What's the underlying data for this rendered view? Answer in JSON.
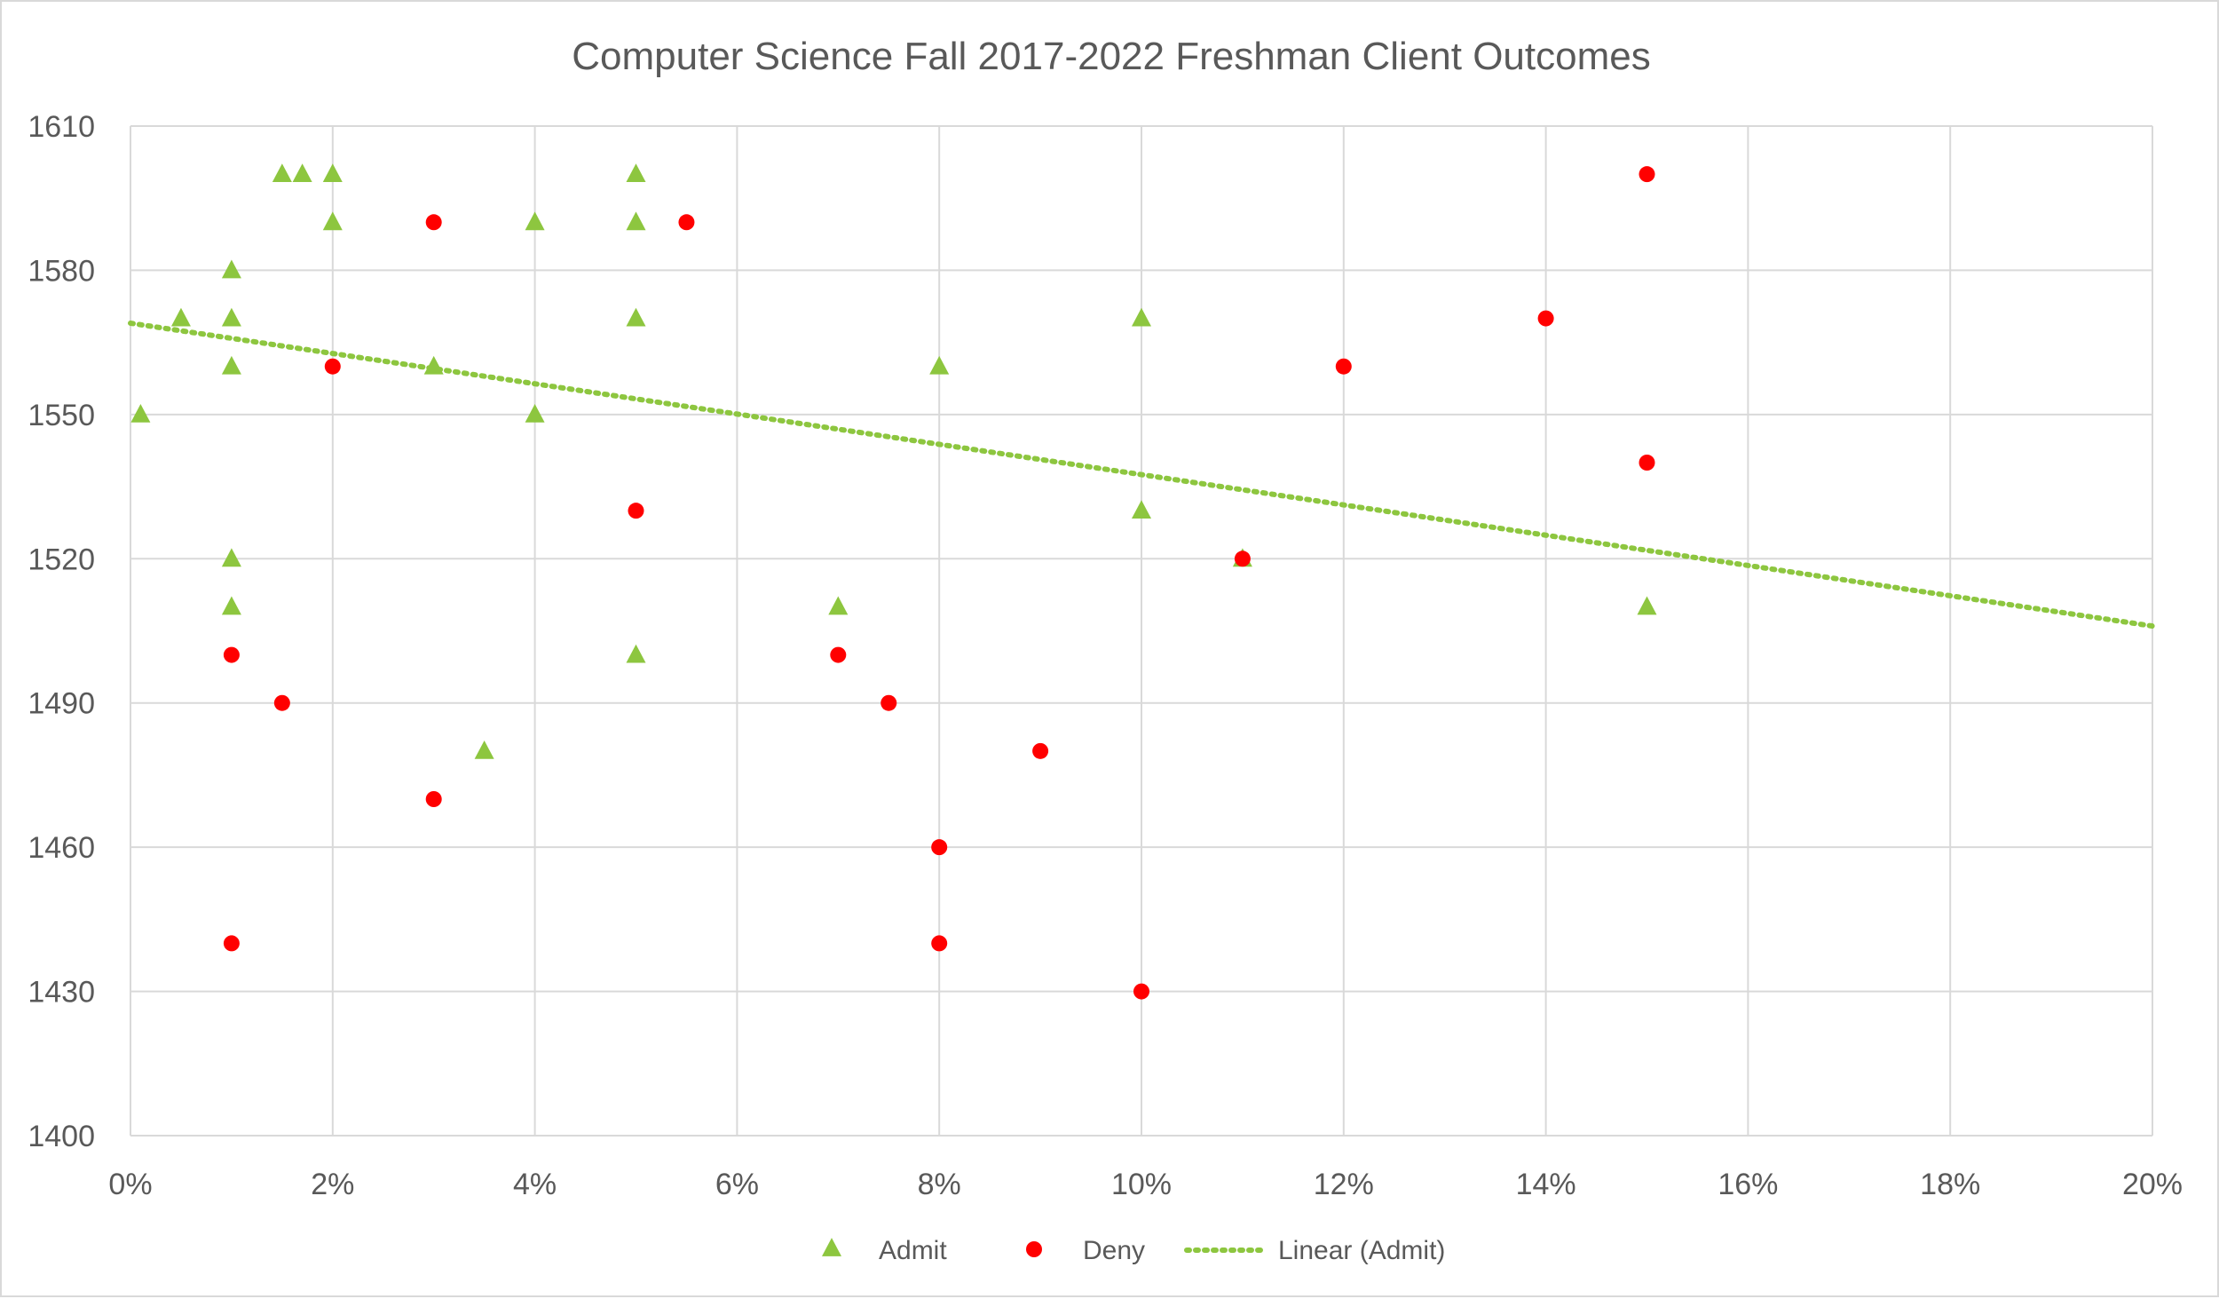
{
  "chart_data": {
    "type": "scatter",
    "title": "Computer Science Fall 2017-2022 Freshman Client Outcomes",
    "xlabel": "",
    "ylabel": "",
    "xlim": [
      0,
      20
    ],
    "ylim": [
      1400,
      1610
    ],
    "x_unit": "%",
    "x_ticks": [
      0,
      2,
      4,
      6,
      8,
      10,
      12,
      14,
      16,
      18,
      20
    ],
    "x_tick_labels": [
      "0%",
      "2%",
      "4%",
      "6%",
      "8%",
      "10%",
      "12%",
      "14%",
      "16%",
      "18%",
      "20%"
    ],
    "y_ticks": [
      1400,
      1430,
      1460,
      1490,
      1520,
      1550,
      1580,
      1610
    ],
    "y_tick_labels": [
      "1400",
      "1430",
      "1460",
      "1490",
      "1520",
      "1550",
      "1580",
      "1610"
    ],
    "grid": true,
    "legend_position": "bottom",
    "series": [
      {
        "name": "Admit",
        "marker": "triangle",
        "color": "#8dc63f",
        "points": [
          [
            0.1,
            1550
          ],
          [
            0.5,
            1570
          ],
          [
            1,
            1580
          ],
          [
            1,
            1570
          ],
          [
            1,
            1560
          ],
          [
            1,
            1520
          ],
          [
            1,
            1510
          ],
          [
            1.5,
            1600
          ],
          [
            1.7,
            1600
          ],
          [
            2,
            1600
          ],
          [
            2,
            1590
          ],
          [
            3,
            1560
          ],
          [
            3.5,
            1480
          ],
          [
            4,
            1590
          ],
          [
            4,
            1550
          ],
          [
            5,
            1600
          ],
          [
            5,
            1590
          ],
          [
            5,
            1570
          ],
          [
            5,
            1500
          ],
          [
            7,
            1510
          ],
          [
            8,
            1560
          ],
          [
            10,
            1570
          ],
          [
            10,
            1530
          ],
          [
            11,
            1520
          ],
          [
            15,
            1510
          ]
        ]
      },
      {
        "name": "Deny",
        "marker": "circle",
        "color": "#ff0000",
        "points": [
          [
            1,
            1500
          ],
          [
            1,
            1440
          ],
          [
            1.5,
            1490
          ],
          [
            2,
            1560
          ],
          [
            3,
            1590
          ],
          [
            3,
            1470
          ],
          [
            5,
            1530
          ],
          [
            5.5,
            1590
          ],
          [
            7,
            1500
          ],
          [
            7.5,
            1490
          ],
          [
            8,
            1460
          ],
          [
            8,
            1440
          ],
          [
            9,
            1480
          ],
          [
            10,
            1430
          ],
          [
            11,
            1520
          ],
          [
            12,
            1560
          ],
          [
            14,
            1570
          ],
          [
            15,
            1600
          ],
          [
            15,
            1540
          ]
        ]
      }
    ],
    "trendline": {
      "name": "Linear (Admit)",
      "of_series": "Admit",
      "type": "linear",
      "style": "dotted",
      "color": "#8dc63f",
      "start": [
        0,
        1569
      ],
      "end": [
        20,
        1506
      ]
    }
  }
}
